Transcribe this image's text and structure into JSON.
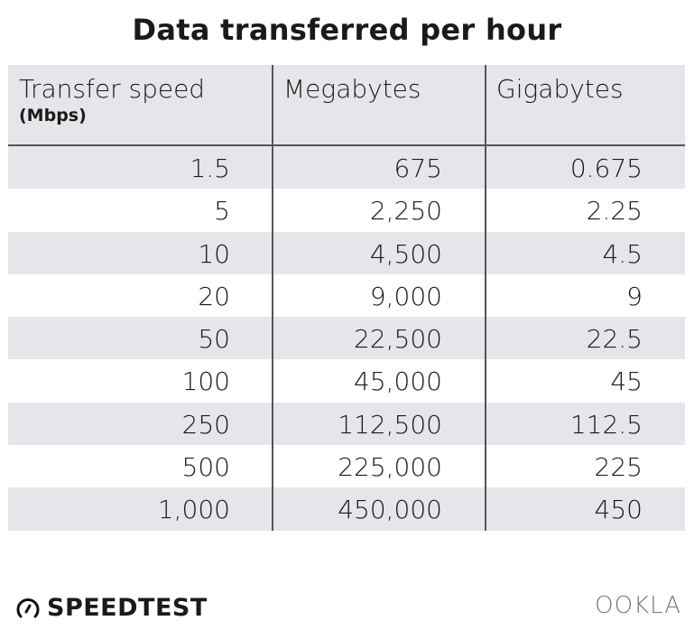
{
  "title": "Data transferred per hour",
  "chart_data": {
    "type": "table",
    "title": "Data transferred per hour",
    "columns": [
      {
        "label": "Transfer speed",
        "sublabel": "(Mbps)"
      },
      {
        "label": "Megabytes"
      },
      {
        "label": "Gigabytes"
      }
    ],
    "rows": [
      [
        "1.5",
        "675",
        "0.675"
      ],
      [
        "5",
        "2,250",
        "2.25"
      ],
      [
        "10",
        "4,500",
        "4.5"
      ],
      [
        "20",
        "9,000",
        "9"
      ],
      [
        "50",
        "22,500",
        "22.5"
      ],
      [
        "100",
        "45,000",
        "45"
      ],
      [
        "250",
        "112,500",
        "112.5"
      ],
      [
        "500",
        "225,000",
        "225"
      ],
      [
        "1,000",
        "450,000",
        "450"
      ]
    ],
    "colors": {
      "stripe": "#e6e6ea",
      "rule": "#555555"
    }
  },
  "footer": {
    "brand": "SPEEDTEST",
    "brand_icon": "speedometer-icon",
    "logo": "OOKLA"
  }
}
